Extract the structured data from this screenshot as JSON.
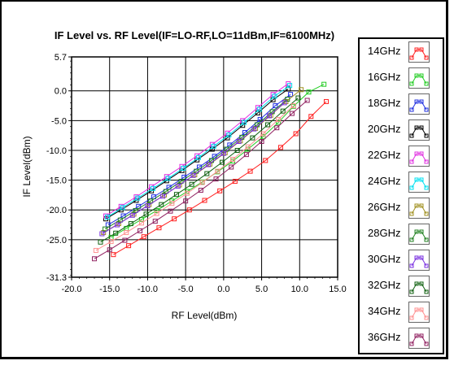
{
  "chart_data": {
    "type": "line",
    "title": "IF Level vs. RF Level(IF=LO-RF,LO=11dBm,IF=6100MHz)",
    "xlabel": "RF Level(dBm)",
    "ylabel": "IF Level(dBm)",
    "xlim": [
      -20,
      15
    ],
    "ylim": [
      -31.3,
      5.7
    ],
    "xticks": [
      "-20.0",
      "-15.0",
      "-10.0",
      "-5.0",
      "0.0",
      "5.0",
      "10.0",
      "15.0"
    ],
    "yticks": [
      {
        "value": 5.7,
        "label": "5.7"
      },
      {
        "value": 0,
        "label": "0.0"
      },
      {
        "value": -5,
        "label": "-5.0"
      },
      {
        "value": -10,
        "label": "-10.0"
      },
      {
        "value": -15,
        "label": "-15.0"
      },
      {
        "value": -20,
        "label": "-20.0"
      },
      {
        "value": -25,
        "label": "-25.0"
      },
      {
        "value": -31.3,
        "label": "-31.3"
      }
    ],
    "grid": true,
    "legend_position": "right",
    "series": [
      {
        "name": "14GHz",
        "color": "#ff2020",
        "x": [
          -14.5,
          -12.5,
          -10.5,
          -8.5,
          -6.5,
          -4.5,
          -2.5,
          -0.5,
          1.5,
          3.5,
          5.5,
          7.5,
          9.5,
          11.5,
          13.5
        ],
        "y": [
          -27.5,
          -26.0,
          -24.5,
          -23.0,
          -21.5,
          -20.0,
          -18.4,
          -16.8,
          -15.2,
          -13.5,
          -11.7,
          -9.5,
          -7.2,
          -4.3,
          -1.8
        ]
      },
      {
        "name": "16GHz",
        "color": "#22cc22",
        "x": [
          -14.8,
          -12.8,
          -10.8,
          -8.8,
          -6.8,
          -4.8,
          -2.8,
          -0.8,
          1.2,
          3.2,
          5.2,
          7.2,
          9.2,
          11.2,
          13.2
        ],
        "y": [
          -24.6,
          -23.1,
          -21.6,
          -20.1,
          -18.5,
          -16.9,
          -15.3,
          -13.6,
          -11.8,
          -9.8,
          -7.7,
          -5.3,
          -2.6,
          -0.2,
          1.1
        ]
      },
      {
        "name": "18GHz",
        "color": "#2030e0",
        "x": [
          -15.2,
          -13.2,
          -11.2,
          -9.2,
          -7.2,
          -5.2,
          -3.2,
          -1.2,
          0.8,
          2.8,
          4.8,
          6.8,
          8.8
        ],
        "y": [
          -22.5,
          -21.0,
          -19.4,
          -17.8,
          -16.2,
          -14.5,
          -12.8,
          -11.0,
          -9.1,
          -7.0,
          -4.8,
          -2.5,
          -0.6
        ]
      },
      {
        "name": "20GHz",
        "color": "#000000",
        "x": [
          -15.5,
          -13.5,
          -11.5,
          -9.5,
          -7.5,
          -5.5,
          -3.5,
          -1.5,
          0.5,
          2.5,
          4.5,
          6.5,
          8.5
        ],
        "y": [
          -21.5,
          -20.0,
          -18.4,
          -16.8,
          -15.1,
          -13.4,
          -11.6,
          -9.8,
          -7.9,
          -5.8,
          -3.7,
          -1.5,
          0.3
        ]
      },
      {
        "name": "22GHz",
        "color": "#e030e0",
        "x": [
          -15.5,
          -13.5,
          -11.5,
          -9.5,
          -7.5,
          -5.5,
          -3.5,
          -1.5,
          0.5,
          2.5,
          4.5,
          6.5,
          8.5
        ],
        "y": [
          -21.0,
          -19.4,
          -17.8,
          -16.1,
          -14.4,
          -12.7,
          -10.9,
          -9.0,
          -7.1,
          -5.0,
          -2.8,
          -0.6,
          1.2
        ]
      },
      {
        "name": "24GHz",
        "color": "#00e0f0",
        "x": [
          -15.3,
          -13.3,
          -11.3,
          -9.3,
          -7.3,
          -5.3,
          -3.3,
          -1.3,
          0.7,
          2.7,
          4.7,
          6.7,
          8.7
        ],
        "y": [
          -21.2,
          -19.6,
          -18.0,
          -16.4,
          -14.7,
          -13.0,
          -11.2,
          -9.3,
          -7.4,
          -5.3,
          -3.1,
          -0.9,
          0.9
        ]
      },
      {
        "name": "26GHz",
        "color": "#a09020",
        "x": [
          -15.8,
          -13.8,
          -11.8,
          -9.8,
          -7.8,
          -5.8,
          -3.8,
          -1.8,
          0.2,
          2.2,
          4.2,
          6.2,
          8.2,
          10.2
        ],
        "y": [
          -23.8,
          -22.3,
          -20.7,
          -19.1,
          -17.5,
          -15.8,
          -14.1,
          -12.3,
          -10.4,
          -8.4,
          -6.3,
          -4.1,
          -1.8,
          0.2
        ]
      },
      {
        "name": "28GHz",
        "color": "#208020",
        "x": [
          -15.6,
          -13.6,
          -11.6,
          -9.6,
          -7.6,
          -5.6,
          -3.6,
          -1.6,
          0.4,
          2.4,
          4.4,
          6.4,
          8.4
        ],
        "y": [
          -23.2,
          -21.7,
          -20.1,
          -18.5,
          -16.9,
          -15.2,
          -13.5,
          -11.7,
          -9.8,
          -7.8,
          -5.7,
          -3.5,
          -1.4
        ]
      },
      {
        "name": "30GHz",
        "color": "#7a30e0",
        "x": [
          -16.0,
          -14.0,
          -12.0,
          -10.0,
          -8.0,
          -6.0,
          -4.0,
          -2.0,
          0.0,
          2.0,
          4.0,
          6.0,
          8.0
        ],
        "y": [
          -24.0,
          -22.5,
          -20.9,
          -19.3,
          -17.7,
          -16.0,
          -14.2,
          -12.4,
          -10.5,
          -8.5,
          -6.4,
          -4.2,
          -2.0
        ]
      },
      {
        "name": "32GHz",
        "color": "#106010",
        "x": [
          -16.2,
          -14.2,
          -12.2,
          -10.2,
          -8.2,
          -6.2,
          -4.2,
          -2.2,
          -0.2,
          1.8,
          3.8,
          5.8,
          7.8,
          9.8
        ],
        "y": [
          -25.4,
          -23.9,
          -22.3,
          -20.7,
          -19.1,
          -17.4,
          -15.7,
          -13.9,
          -12.0,
          -10.0,
          -7.9,
          -5.7,
          -3.4,
          -1.2
        ]
      },
      {
        "name": "34GHz",
        "color": "#ff9090",
        "x": [
          -16.8,
          -14.8,
          -12.8,
          -10.8,
          -8.8,
          -6.8,
          -4.8,
          -2.8,
          -0.8,
          1.2,
          3.2,
          5.2,
          7.2,
          9.2
        ],
        "y": [
          -26.8,
          -25.3,
          -23.8,
          -22.2,
          -20.6,
          -18.9,
          -17.2,
          -15.4,
          -13.5,
          -11.5,
          -9.4,
          -7.2,
          -4.8,
          -2.5
        ]
      },
      {
        "name": "36GHz",
        "color": "#902060",
        "x": [
          -17.0,
          -15.0,
          -13.0,
          -11.0,
          -9.0,
          -7.0,
          -5.0,
          -3.0,
          -1.0,
          1.0,
          3.0,
          5.0,
          7.0,
          9.0,
          11.0
        ],
        "y": [
          -28.2,
          -26.7,
          -25.1,
          -23.5,
          -21.9,
          -20.2,
          -18.5,
          -16.7,
          -14.8,
          -12.8,
          -10.7,
          -8.5,
          -6.2,
          -3.8,
          -1.6
        ]
      }
    ]
  }
}
